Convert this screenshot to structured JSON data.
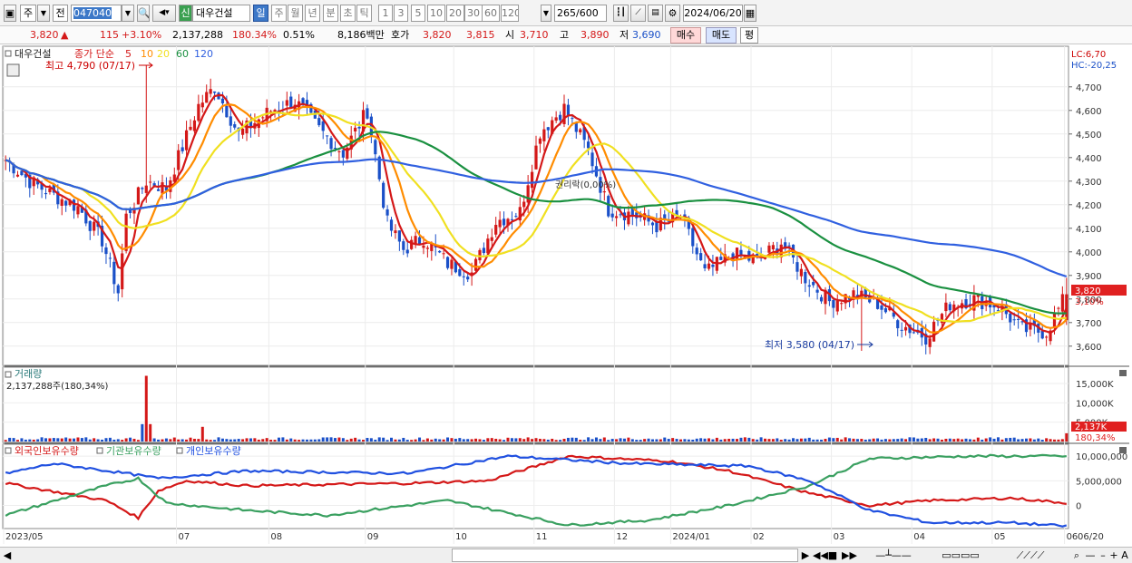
{
  "toolbar": {
    "market_tab": "주",
    "period_prefix": "전",
    "code": "047040",
    "flag": "신",
    "name": "대우건설",
    "periods": [
      "일",
      "주",
      "월",
      "년",
      "분",
      "초",
      "틱"
    ],
    "intervals": [
      "1",
      "3",
      "5",
      "10",
      "20",
      "30",
      "60",
      "120"
    ],
    "count": "265",
    "count_total": "/600",
    "date": "2024/06/20"
  },
  "info": {
    "price": "3,820",
    "arrow": "▲",
    "change": "115",
    "change_pct": "+3.10%",
    "volume": "2,137,288",
    "vol_ratio": "180.34%",
    "turnover": "0.51%",
    "amount": "8,186백만",
    "ask_label": "호가",
    "ask1": "3,820",
    "ask2": "3,815",
    "open_label": "시",
    "open": "3,710",
    "high_label": "고",
    "high": "3,890",
    "low_label": "저",
    "low": "3,690",
    "buy": "매수",
    "sell": "매도",
    "avg": "평"
  },
  "price_pane": {
    "title": "대우건설",
    "ma_label": "종가 단순",
    "ma_periods": [
      "5",
      "10",
      "20",
      "60",
      "120"
    ],
    "high_note": "최고 4,790 (07/17)",
    "low_note": "최저 3,580 (04/17)",
    "ex_note": "권리락(0,00%)",
    "lc": "LC:6,70",
    "hc": "HC:-20,25",
    "last_price": "3,820",
    "last_pct": "3,10%",
    "y_ticks": [
      "4,700",
      "4,600",
      "4,500",
      "4,400",
      "4,300",
      "4,200",
      "4,100",
      "4,000",
      "3,900",
      "3,800",
      "3,700",
      "3,600"
    ]
  },
  "volume_pane": {
    "title": "거래량",
    "value": "2,137,288주(180,34%)",
    "y_ticks": [
      "15,000K",
      "10,000K",
      "5,000K"
    ],
    "last": "2,137K",
    "last_pct": "180,34%"
  },
  "holder_pane": {
    "series": [
      "외국인보유수량",
      "기관보유수량",
      "개인보유수량"
    ],
    "y_ticks": [
      "10,000,000",
      "5,000,000",
      "0"
    ]
  },
  "x_ticks": [
    "2023/05",
    "07",
    "08",
    "09",
    "10",
    "11",
    "12",
    "2024/01",
    "02",
    "03",
    "04",
    "05",
    "06",
    "06/20"
  ],
  "colors": {
    "up": "#d41818",
    "down": "#1a50c8",
    "ma5": "#d41818",
    "ma10": "#ff8c00",
    "ma20": "#f0e020",
    "ma60": "#1a9040",
    "ma120": "#3060e0",
    "foreign": "#d41818",
    "inst": "#3aa060",
    "indiv": "#2050e0"
  },
  "chart_data": [
    {
      "type": "candlestick",
      "ylim": [
        3530,
        4830
      ],
      "y_axis": "price",
      "close_path": [
        [
          0,
          4390
        ],
        [
          6,
          4300
        ],
        [
          12,
          4240
        ],
        [
          18,
          4190
        ],
        [
          24,
          4050
        ],
        [
          28,
          3830
        ],
        [
          30,
          4150
        ],
        [
          35,
          4300
        ],
        [
          40,
          4270
        ],
        [
          48,
          4620
        ],
        [
          52,
          4700
        ],
        [
          58,
          4500
        ],
        [
          66,
          4600
        ],
        [
          72,
          4640
        ],
        [
          78,
          4520
        ],
        [
          84,
          4420
        ],
        [
          90,
          4600
        ],
        [
          95,
          4120
        ],
        [
          99,
          4010
        ],
        [
          104,
          4060
        ],
        [
          110,
          3950
        ],
        [
          116,
          3910
        ],
        [
          122,
          4130
        ],
        [
          128,
          4170
        ],
        [
          133,
          4510
        ],
        [
          139,
          4610
        ],
        [
          145,
          4430
        ],
        [
          150,
          4180
        ],
        [
          156,
          4160
        ],
        [
          162,
          4110
        ],
        [
          168,
          4150
        ],
        [
          174,
          3910
        ],
        [
          181,
          3990
        ],
        [
          187,
          3960
        ],
        [
          193,
          4040
        ],
        [
          199,
          3890
        ],
        [
          205,
          3790
        ],
        [
          211,
          3820
        ],
        [
          217,
          3780
        ],
        [
          223,
          3690
        ],
        [
          229,
          3640
        ],
        [
          235,
          3780
        ],
        [
          241,
          3800
        ],
        [
          247,
          3770
        ],
        [
          253,
          3670
        ],
        [
          259,
          3660
        ],
        [
          264,
          3820
        ]
      ],
      "ma_series": [
        "5",
        "10",
        "20",
        "60",
        "120"
      ]
    },
    {
      "type": "bar",
      "y_axis": "volume",
      "ylim": [
        0,
        19000
      ],
      "unit": "K",
      "spike_at_index": 35,
      "spike_value": 17000,
      "last_value": 2137
    },
    {
      "type": "line",
      "y_axis": "holdings",
      "ylim": [
        -4500000,
        11500000
      ],
      "series": [
        {
          "name": "외국인보유수량",
          "points": [
            [
              0,
              4500000
            ],
            [
              25,
              1000000
            ],
            [
              33,
              -2500000
            ],
            [
              38,
              3000000
            ],
            [
              45,
              5000000
            ],
            [
              60,
              4000000
            ],
            [
              100,
              4500000
            ],
            [
              120,
              5000000
            ],
            [
              140,
              10000000
            ],
            [
              165,
              9000000
            ],
            [
              180,
              7000000
            ],
            [
              200,
              2500000
            ],
            [
              215,
              0
            ],
            [
              230,
              1000000
            ],
            [
              250,
              1500000
            ],
            [
              264,
              500000
            ]
          ]
        },
        {
          "name": "기관보유수량",
          "points": [
            [
              0,
              -2000000
            ],
            [
              25,
              4000000
            ],
            [
              33,
              5500000
            ],
            [
              40,
              500000
            ],
            [
              60,
              -1000000
            ],
            [
              80,
              -2000000
            ],
            [
              110,
              1000000
            ],
            [
              128,
              -2000000
            ],
            [
              140,
              -4000000
            ],
            [
              160,
              -3000000
            ],
            [
              180,
              0
            ],
            [
              200,
              4000000
            ],
            [
              215,
              9500000
            ],
            [
              240,
              10000000
            ],
            [
              264,
              10000000
            ]
          ]
        },
        {
          "name": "개인보유수량",
          "points": [
            [
              0,
              6500000
            ],
            [
              12,
              8500000
            ],
            [
              30,
              6500000
            ],
            [
              38,
              5500000
            ],
            [
              60,
              7000000
            ],
            [
              100,
              6500000
            ],
            [
              125,
              10000000
            ],
            [
              155,
              8500000
            ],
            [
              185,
              8000000
            ],
            [
              200,
              5000000
            ],
            [
              215,
              -1000000
            ],
            [
              230,
              -3500000
            ],
            [
              250,
              -3500000
            ],
            [
              264,
              -4200000
            ]
          ]
        }
      ]
    }
  ]
}
